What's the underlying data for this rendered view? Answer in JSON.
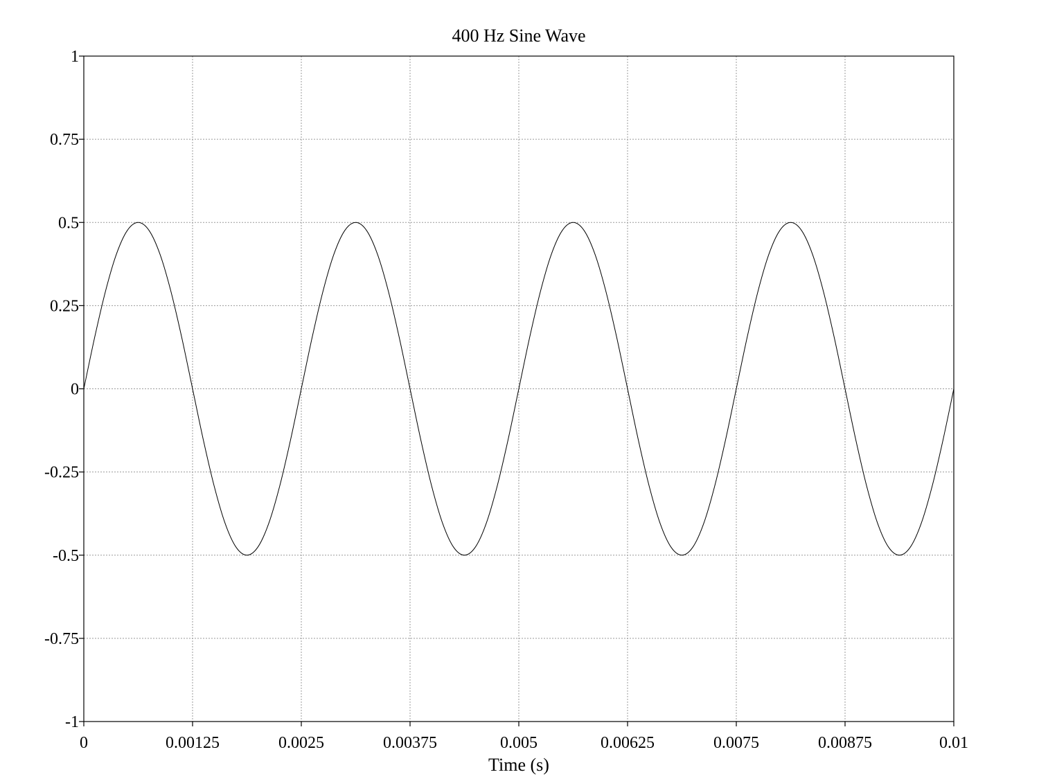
{
  "chart_data": {
    "type": "line",
    "title": "400 Hz Sine Wave",
    "xlabel": "Time (s)",
    "ylabel": "",
    "xlim": [
      0,
      0.01
    ],
    "ylim": [
      -1,
      1
    ],
    "grid": true,
    "legend": "none",
    "x_ticks": [
      {
        "value": 0,
        "label": "0"
      },
      {
        "value": 0.00125,
        "label": "0.00125"
      },
      {
        "value": 0.0025,
        "label": "0.0025"
      },
      {
        "value": 0.00375,
        "label": "0.00375"
      },
      {
        "value": 0.005,
        "label": "0.005"
      },
      {
        "value": 0.00625,
        "label": "0.00625"
      },
      {
        "value": 0.0075,
        "label": "0.0075"
      },
      {
        "value": 0.00875,
        "label": "0.00875"
      },
      {
        "value": 0.01,
        "label": "0.01"
      }
    ],
    "y_ticks": [
      {
        "value": 1,
        "label": "1"
      },
      {
        "value": 0.75,
        "label": "0.75"
      },
      {
        "value": 0.5,
        "label": "0.5"
      },
      {
        "value": 0.25,
        "label": "0.25"
      },
      {
        "value": 0,
        "label": "0"
      },
      {
        "value": -0.25,
        "label": "-0.25"
      },
      {
        "value": -0.5,
        "label": "-0.5"
      },
      {
        "value": -0.75,
        "label": "-0.75"
      },
      {
        "value": -1,
        "label": "-1"
      }
    ],
    "series": [
      {
        "color": "#000000",
        "x": [
          0,
          0.000125,
          0.00025,
          0.000375,
          0.0005,
          0.000625,
          0.00075,
          0.000875,
          0.001,
          0.001125,
          0.00125,
          0.001375,
          0.0015,
          0.001625,
          0.00175,
          0.001875,
          0.002,
          0.002125,
          0.00225,
          0.002375,
          0.0025,
          0.002625,
          0.00275,
          0.002875,
          0.003,
          0.003125,
          0.00325,
          0.003375,
          0.0035,
          0.003625,
          0.00375,
          0.003875,
          0.004,
          0.004125,
          0.00425,
          0.004375,
          0.0045,
          0.004625,
          0.00475,
          0.004875,
          0.005,
          0.005125,
          0.00525,
          0.005375,
          0.0055,
          0.005625,
          0.00575,
          0.005875,
          0.006,
          0.006125,
          0.00625,
          0.006375,
          0.0065,
          0.006625,
          0.00675,
          0.006875,
          0.007,
          0.007125,
          0.00725,
          0.007375,
          0.0075,
          0.007625,
          0.00775,
          0.007875,
          0.008,
          0.008125,
          0.00825,
          0.008375,
          0.0085,
          0.008625,
          0.00875,
          0.008875,
          0.009,
          0.009125,
          0.00925,
          0.009375,
          0.0095,
          0.009625,
          0.00975,
          0.009875,
          0.01
        ],
        "y": [
          0,
          0.155,
          0.294,
          0.405,
          0.476,
          0.5,
          0.476,
          0.405,
          0.294,
          0.155,
          0,
          -0.155,
          -0.294,
          -0.405,
          -0.476,
          -0.5,
          -0.476,
          -0.405,
          -0.294,
          -0.155,
          0,
          0.155,
          0.294,
          0.405,
          0.476,
          0.5,
          0.476,
          0.405,
          0.294,
          0.155,
          0,
          -0.155,
          -0.294,
          -0.405,
          -0.476,
          -0.5,
          -0.476,
          -0.405,
          -0.294,
          -0.155,
          0,
          0.155,
          0.294,
          0.405,
          0.476,
          0.5,
          0.476,
          0.405,
          0.294,
          0.155,
          0,
          -0.155,
          -0.294,
          -0.405,
          -0.476,
          -0.5,
          -0.476,
          -0.405,
          -0.294,
          -0.155,
          0,
          0.155,
          0.294,
          0.405,
          0.476,
          0.5,
          0.476,
          0.405,
          0.294,
          0.155,
          0,
          -0.155,
          -0.294,
          -0.405,
          -0.476,
          -0.5,
          -0.476,
          -0.405,
          -0.294,
          -0.155,
          0
        ]
      }
    ]
  }
}
